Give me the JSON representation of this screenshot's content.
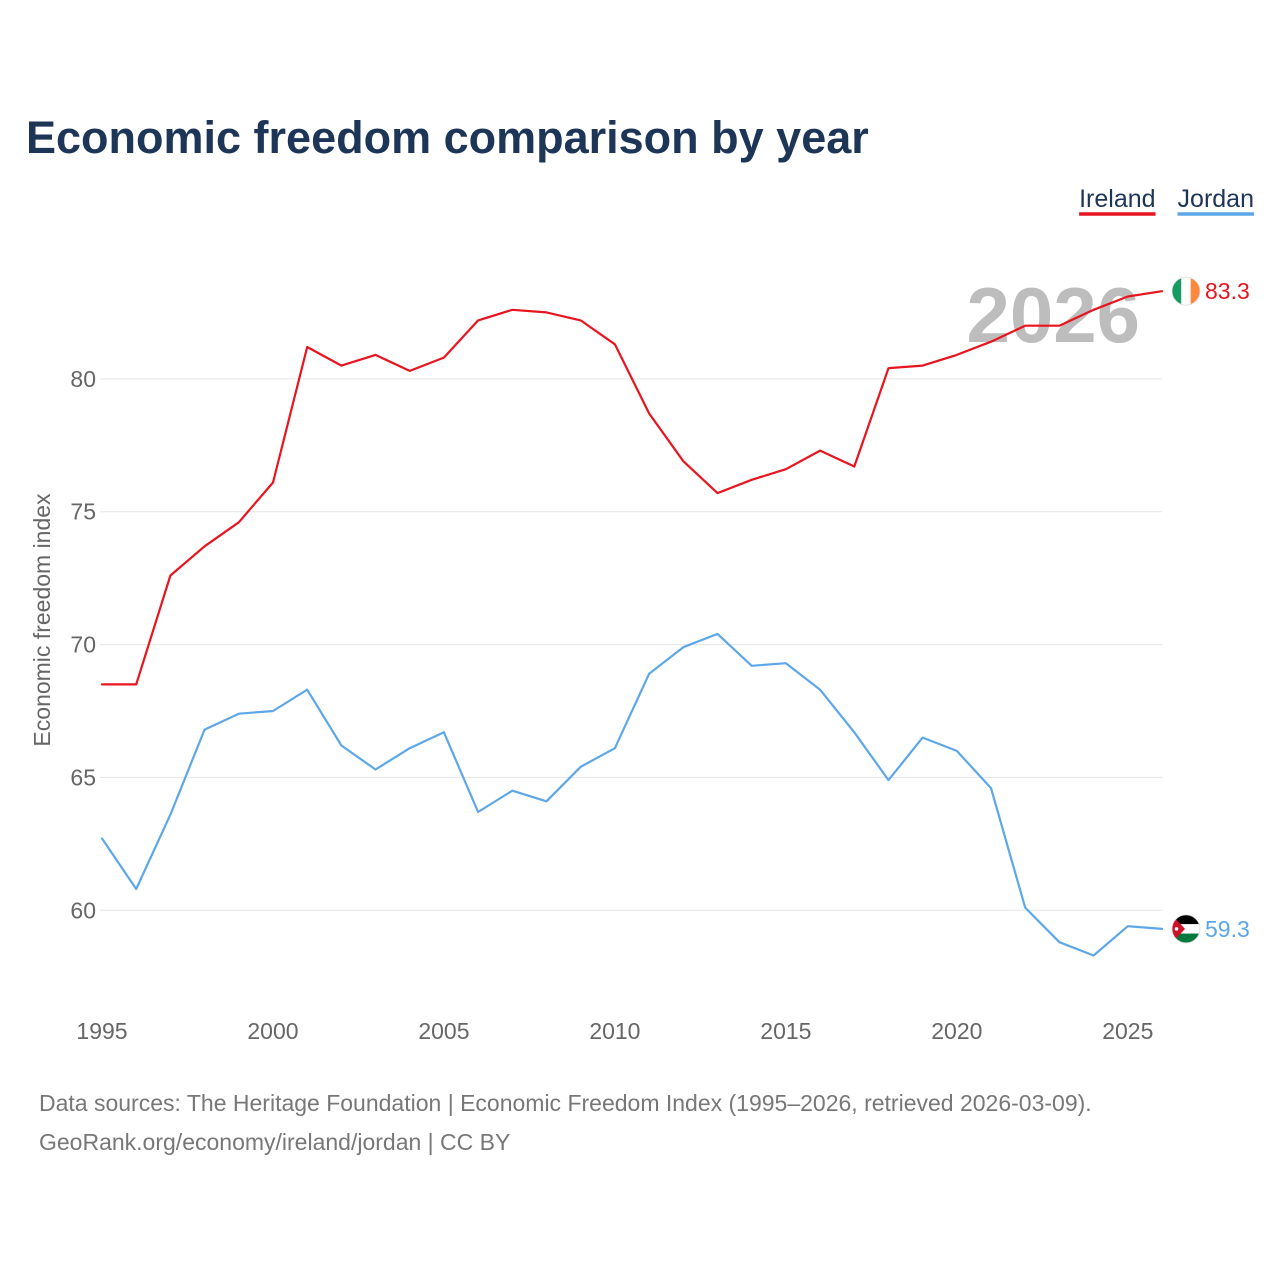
{
  "chart_data": {
    "type": "line",
    "title": "Economic freedom comparison by year",
    "ylabel": "Economic freedom index",
    "xlabel": "",
    "xlim": [
      1995,
      2026
    ],
    "ylim": [
      57,
      85
    ],
    "x_ticks": [
      1995,
      2000,
      2005,
      2010,
      2015,
      2020,
      2025
    ],
    "y_ticks": [
      60,
      65,
      70,
      75,
      80
    ],
    "grid": true,
    "legend_position": "top-right",
    "current_year_label": "2026",
    "x": [
      1995,
      1996,
      1997,
      1998,
      1999,
      2000,
      2001,
      2002,
      2003,
      2004,
      2005,
      2006,
      2007,
      2008,
      2009,
      2010,
      2011,
      2012,
      2013,
      2014,
      2015,
      2016,
      2017,
      2018,
      2019,
      2020,
      2021,
      2022,
      2023,
      2024,
      2025,
      2026
    ],
    "series": [
      {
        "name": "Ireland",
        "color": "#e8141e",
        "flag": "ireland-flag",
        "end_label": "83.3",
        "values": [
          68.5,
          68.5,
          72.6,
          73.7,
          74.6,
          76.1,
          81.2,
          80.5,
          80.9,
          80.3,
          80.8,
          82.2,
          82.6,
          82.5,
          82.2,
          81.3,
          78.7,
          76.9,
          75.7,
          76.2,
          76.6,
          77.3,
          76.7,
          80.4,
          80.5,
          80.9,
          81.4,
          82.0,
          82.0,
          82.6,
          83.1,
          83.3
        ]
      },
      {
        "name": "Jordan",
        "color": "#5da7e8",
        "flag": "jordan-flag",
        "end_label": "59.3",
        "values": [
          62.7,
          60.8,
          63.6,
          66.8,
          67.4,
          67.5,
          68.3,
          66.2,
          65.3,
          66.1,
          66.7,
          63.7,
          64.5,
          64.1,
          65.4,
          66.1,
          68.9,
          69.9,
          70.4,
          69.2,
          69.3,
          68.3,
          66.7,
          64.9,
          66.5,
          66.0,
          64.6,
          60.1,
          58.8,
          58.3,
          59.4,
          59.3
        ]
      }
    ]
  },
  "source": {
    "line1": "Data sources: The Heritage Foundation | Economic Freedom Index (1995–2026, retrieved 2026-03-09).",
    "line2": "GeoRank.org/economy/ireland/jordan | CC BY"
  }
}
